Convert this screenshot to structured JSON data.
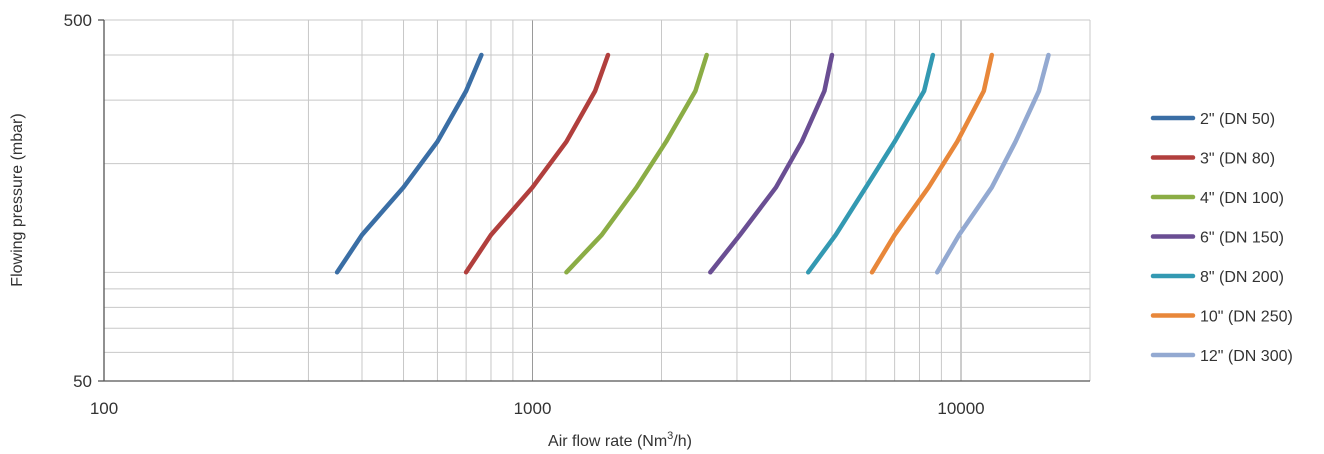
{
  "chart_data": {
    "type": "line",
    "xlabel": "Air flow rate (Nm",
    "xlabel_sup": "3",
    "xlabel_tail": "/h)",
    "ylabel": "Flowing pressure (mbar)",
    "x_scale": "log",
    "y_scale": "log",
    "xlim": [
      100,
      20000
    ],
    "ylim": [
      50,
      500
    ],
    "x_tick_labels": [
      "100",
      "1000",
      "10000"
    ],
    "y_tick_labels": [
      "500",
      "50"
    ],
    "grid": true,
    "legend_position": "right",
    "series": [
      {
        "name": "2\" (DN 50)",
        "color": "#3a6ea5",
        "x": [
          350,
          400,
          500,
          600,
          700,
          760
        ],
        "y": [
          100,
          127,
          172,
          230,
          318,
          400
        ]
      },
      {
        "name": "3\" (DN 80)",
        "color": "#b13f3d",
        "x": [
          700,
          800,
          1000,
          1200,
          1400,
          1500
        ],
        "y": [
          100,
          127,
          172,
          230,
          318,
          400
        ]
      },
      {
        "name": "4\" (DN 100)",
        "color": "#8bad45",
        "x": [
          1200,
          1450,
          1750,
          2050,
          2400,
          2550
        ],
        "y": [
          100,
          127,
          172,
          230,
          318,
          400
        ]
      },
      {
        "name": "6\" (DN 150)",
        "color": "#6a4e93",
        "x": [
          2600,
          3050,
          3700,
          4250,
          4800,
          5000
        ],
        "y": [
          100,
          127,
          172,
          230,
          318,
          400
        ]
      },
      {
        "name": "8\" (DN 200)",
        "color": "#3399b2",
        "x": [
          4400,
          5100,
          6000,
          7000,
          8200,
          8600
        ],
        "y": [
          100,
          127,
          172,
          230,
          318,
          400
        ]
      },
      {
        "name": "10\" (DN 250)",
        "color": "#e8873a",
        "x": [
          6200,
          7000,
          8400,
          9800,
          11300,
          11800
        ],
        "y": [
          100,
          127,
          172,
          230,
          318,
          400
        ]
      },
      {
        "name": "12\" (DN 300)",
        "color": "#93a9d1",
        "x": [
          8800,
          9900,
          11800,
          13400,
          15200,
          16000
        ],
        "y": [
          100,
          127,
          172,
          230,
          318,
          400
        ]
      }
    ]
  }
}
